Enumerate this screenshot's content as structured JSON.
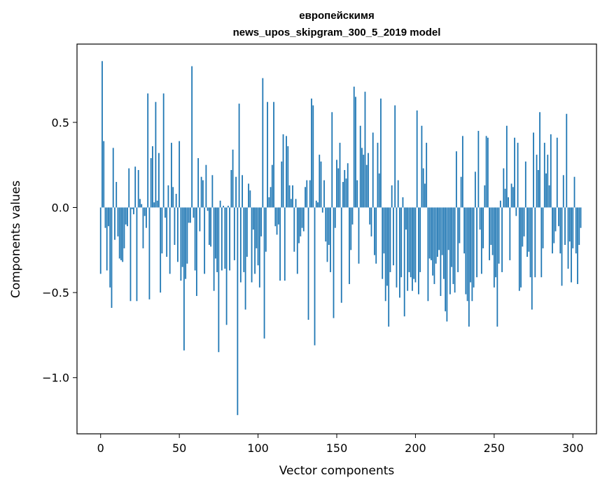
{
  "chart_data": {
    "type": "bar",
    "title_line1": "европейскимя",
    "title_line2": "news_upos_skipgram_300_5_2019 model",
    "xlabel": "Vector components",
    "ylabel": "Components values",
    "xlim": [
      -15,
      315
    ],
    "ylim": [
      -1.33,
      0.96
    ],
    "xticks": [
      0,
      50,
      100,
      150,
      200,
      250,
      300
    ],
    "xtick_labels": [
      "0",
      "50",
      "100",
      "150",
      "200",
      "250",
      "300"
    ],
    "yticks": [
      -1.0,
      -0.5,
      0.0,
      0.5
    ],
    "ytick_labels": [
      "−1.0",
      "−0.5",
      "0.0",
      "0.5"
    ],
    "grid": false,
    "bar_color": "#1f77b4",
    "values": [
      -0.39,
      0.86,
      0.39,
      -0.12,
      -0.37,
      -0.11,
      -0.47,
      -0.59,
      0.35,
      -0.19,
      0.15,
      -0.17,
      -0.3,
      -0.31,
      -0.32,
      -0.24,
      -0.1,
      -0.11,
      0.23,
      -0.55,
      -0.01,
      -0.04,
      0.24,
      -0.55,
      0.22,
      0.05,
      0.02,
      -0.24,
      -0.05,
      -0.12,
      0.67,
      -0.54,
      0.29,
      0.36,
      0.03,
      0.62,
      0.04,
      0.32,
      -0.5,
      -0.27,
      0.67,
      -0.06,
      -0.29,
      0.13,
      -0.39,
      0.38,
      0.12,
      -0.22,
      0.08,
      -0.32,
      0.39,
      -0.43,
      -0.35,
      -0.84,
      -0.42,
      -0.33,
      -0.09,
      -0.09,
      0.83,
      -0.06,
      -0.37,
      -0.52,
      0.29,
      -0.14,
      0.18,
      0.16,
      -0.39,
      0.25,
      -0.02,
      -0.22,
      -0.23,
      0.19,
      -0.49,
      -0.3,
      -0.38,
      -0.85,
      0.04,
      -0.37,
      0.01,
      -0.36,
      -0.69,
      0.01,
      -0.37,
      0.22,
      0.34,
      -0.31,
      0.18,
      -1.22,
      0.61,
      -0.44,
      0.19,
      -0.38,
      -0.6,
      -0.29,
      0.14,
      0.1,
      -0.44,
      -0.13,
      -0.39,
      -0.24,
      -0.34,
      -0.47,
      -0.17,
      0.76,
      -0.77,
      -0.26,
      0.62,
      0.06,
      0.12,
      0.25,
      0.62,
      -0.11,
      -0.16,
      -0.1,
      -0.43,
      0.27,
      0.43,
      -0.43,
      0.42,
      0.36,
      0.13,
      0.05,
      0.13,
      -0.26,
      0.05,
      -0.39,
      -0.21,
      -0.17,
      -0.12,
      -0.14,
      0.12,
      0.16,
      -0.66,
      0.16,
      0.64,
      0.6,
      -0.81,
      0.04,
      0.03,
      0.31,
      0.27,
      -0.03,
      0.16,
      -0.2,
      -0.32,
      -0.22,
      -0.38,
      0.56,
      -0.65,
      -0.12,
      0.28,
      0.23,
      0.38,
      -0.56,
      0.15,
      0.22,
      0.17,
      0.26,
      -0.45,
      -0.25,
      -0.1,
      0.71,
      0.65,
      0.16,
      -0.33,
      0.48,
      0.35,
      0.31,
      0.68,
      0.25,
      0.32,
      -0.1,
      -0.17,
      0.44,
      -0.28,
      -0.33,
      0.38,
      0.2,
      0.64,
      -0.42,
      -0.27,
      -0.55,
      -0.46,
      -0.7,
      -0.38,
      0.13,
      -0.34,
      0.6,
      -0.47,
      0.16,
      -0.53,
      -0.41,
      0.06,
      -0.64,
      -0.13,
      -0.49,
      -0.38,
      -0.41,
      -0.49,
      -0.42,
      -0.44,
      0.57,
      -0.51,
      -0.38,
      0.48,
      0.23,
      0.14,
      0.38,
      -0.55,
      -0.3,
      -0.31,
      -0.4,
      -0.45,
      -0.33,
      -0.29,
      -0.25,
      -0.52,
      -0.28,
      -0.42,
      -0.61,
      -0.67,
      -0.25,
      -0.51,
      -0.35,
      -0.45,
      -0.5,
      0.33,
      -0.38,
      -0.21,
      0.18,
      0.42,
      -0.27,
      -0.51,
      -0.55,
      -0.7,
      -0.44,
      -0.55,
      -0.47,
      0.21,
      -0.41,
      0.45,
      -0.13,
      -0.39,
      -0.24,
      0.13,
      0.42,
      0.41,
      -0.31,
      -0.22,
      -0.28,
      -0.47,
      -0.41,
      -0.7,
      -0.33,
      0.04,
      -0.38,
      0.23,
      0.11,
      0.48,
      0.06,
      -0.31,
      0.14,
      0.12,
      0.41,
      -0.05,
      0.38,
      -0.49,
      -0.47,
      -0.23,
      -0.17,
      0.27,
      -0.29,
      -0.26,
      -0.41,
      -0.6,
      0.44,
      -0.41,
      0.31,
      0.22,
      0.56,
      -0.41,
      -0.24,
      0.38,
      0.2,
      0.31,
      0.13,
      0.43,
      -0.27,
      -0.21,
      -0.14,
      0.41,
      -0.11,
      -0.27,
      -0.46,
      0.19,
      -0.22,
      0.55,
      -0.36,
      -0.2,
      -0.44,
      -0.24,
      0.18,
      -0.27,
      -0.45,
      -0.22,
      -0.12
    ]
  }
}
